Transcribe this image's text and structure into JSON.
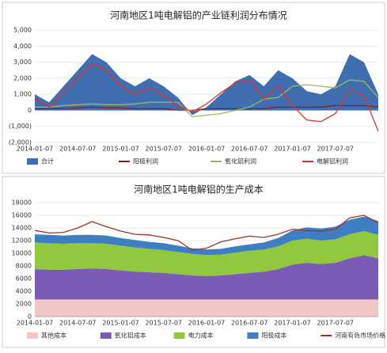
{
  "chart_data": [
    {
      "type": "area",
      "title": "河南地区1吨电解铝的产业链利润分布情况",
      "categories": [
        "2014-01-07",
        null,
        null,
        "2014-07-07",
        null,
        null,
        "2015-01-07",
        null,
        null,
        "2015-07-07",
        null,
        null,
        "2016-01-07",
        null,
        null,
        "2016-07-07",
        null,
        null,
        "2017-01-07",
        null,
        null,
        "2017-07-07",
        null,
        null,
        null
      ],
      "ylim": [
        -2000,
        5000
      ],
      "yticks": [
        {
          "value": 5000,
          "label": "5,000"
        },
        {
          "value": 4000,
          "label": "4,000"
        },
        {
          "value": 3000,
          "label": "3,000"
        },
        {
          "value": 2000,
          "label": "2,000"
        },
        {
          "value": 1000,
          "label": "1,000"
        },
        0,
        {
          "value": -1000,
          "label": "(1,000)"
        },
        {
          "value": -2000,
          "label": "(2,000)"
        }
      ],
      "grid": true,
      "stacked": false,
      "series": [
        {
          "name": "合计",
          "kind": "area",
          "color": "#3f6fb0",
          "values": [
            1000,
            500,
            1500,
            2500,
            3500,
            3000,
            2000,
            1500,
            2000,
            1500,
            800,
            -300,
            200,
            1000,
            1800,
            2200,
            1500,
            2500,
            2000,
            1200,
            1000,
            1500,
            3500,
            3000,
            1000
          ]
        },
        {
          "name": "阳极利润",
          "kind": "line",
          "color": "#8b1a1a",
          "values": [
            100,
            100,
            100,
            150,
            200,
            150,
            150,
            100,
            100,
            100,
            0,
            0,
            100,
            100,
            100,
            100,
            100,
            200,
            200,
            200,
            200,
            300,
            300,
            300,
            200
          ]
        },
        {
          "name": "氧化铝利润",
          "kind": "line",
          "color": "#9bbb59",
          "values": [
            200,
            200,
            300,
            350,
            400,
            350,
            350,
            400,
            500,
            500,
            500,
            -400,
            -300,
            -200,
            0,
            200,
            700,
            800,
            1500,
            1600,
            1500,
            1400,
            1900,
            1800,
            800
          ]
        },
        {
          "name": "电解铝利润",
          "kind": "line",
          "color": "#e0302a",
          "values": [
            700,
            200,
            1100,
            2000,
            2900,
            2500,
            1500,
            1000,
            1400,
            900,
            300,
            -100,
            400,
            1100,
            1700,
            1900,
            700,
            1500,
            300,
            -600,
            -700,
            -200,
            1300,
            900,
            -1300
          ]
        }
      ]
    },
    {
      "type": "area",
      "title": "河南地区1吨电解铝的生产成本",
      "categories": [
        "2014-01-07",
        null,
        null,
        "2014-07-07",
        null,
        null,
        "2015-01-07",
        null,
        null,
        "2015-07-07",
        null,
        null,
        "2016-01-07",
        null,
        null,
        "2016-07-07",
        null,
        null,
        "2017-01-07",
        null,
        null,
        "2017-07-07",
        null,
        null,
        null
      ],
      "ylim": [
        0,
        18000
      ],
      "yticks": [
        0,
        2000,
        4000,
        6000,
        8000,
        10000,
        12000,
        14000,
        16000,
        18000
      ],
      "grid": true,
      "stacked": true,
      "series": [
        {
          "name": "其他成本",
          "kind": "area",
          "color": "#f4c7c7",
          "values": [
            2700,
            2700,
            2700,
            2700,
            2700,
            2700,
            2700,
            2700,
            2700,
            2700,
            2700,
            2700,
            2700,
            2700,
            2700,
            2700,
            2700,
            2700,
            2700,
            2700,
            2700,
            2700,
            2700,
            2700,
            2700
          ]
        },
        {
          "name": "氧化铝成本",
          "kind": "area",
          "color": "#7a5bb5",
          "values": [
            4800,
            4700,
            4700,
            4800,
            4900,
            4800,
            4600,
            4400,
            4300,
            4200,
            4000,
            3800,
            3700,
            3800,
            4000,
            4200,
            4400,
            4800,
            5500,
            5800,
            5600,
            5800,
            6500,
            7000,
            6500
          ]
        },
        {
          "name": "电力成本",
          "kind": "area",
          "color": "#92c83e",
          "values": [
            4200,
            4200,
            4100,
            4100,
            4000,
            4000,
            3900,
            3800,
            3700,
            3600,
            3500,
            3400,
            3300,
            3300,
            3400,
            3500,
            3500,
            3600,
            3800,
            3800,
            3700,
            3700,
            3800,
            3800,
            3700
          ]
        },
        {
          "name": "阳极成本",
          "kind": "area",
          "color": "#3d7fc2",
          "values": [
            1300,
            1300,
            1300,
            1300,
            1300,
            1300,
            1200,
            1200,
            1100,
            1100,
            1000,
            900,
            900,
            900,
            1000,
            1000,
            1100,
            1300,
            1600,
            1800,
            1900,
            2000,
            2300,
            2300,
            2200
          ]
        },
        {
          "name": "河南有色市场价格",
          "kind": "line",
          "color": "#a0302a",
          "values": [
            13600,
            13200,
            13300,
            14000,
            15000,
            14200,
            13500,
            13000,
            12900,
            12500,
            12000,
            10500,
            10800,
            11800,
            12300,
            12700,
            12500,
            13000,
            13800,
            13600,
            13500,
            13800,
            15600,
            16000,
            14800
          ]
        }
      ]
    }
  ]
}
